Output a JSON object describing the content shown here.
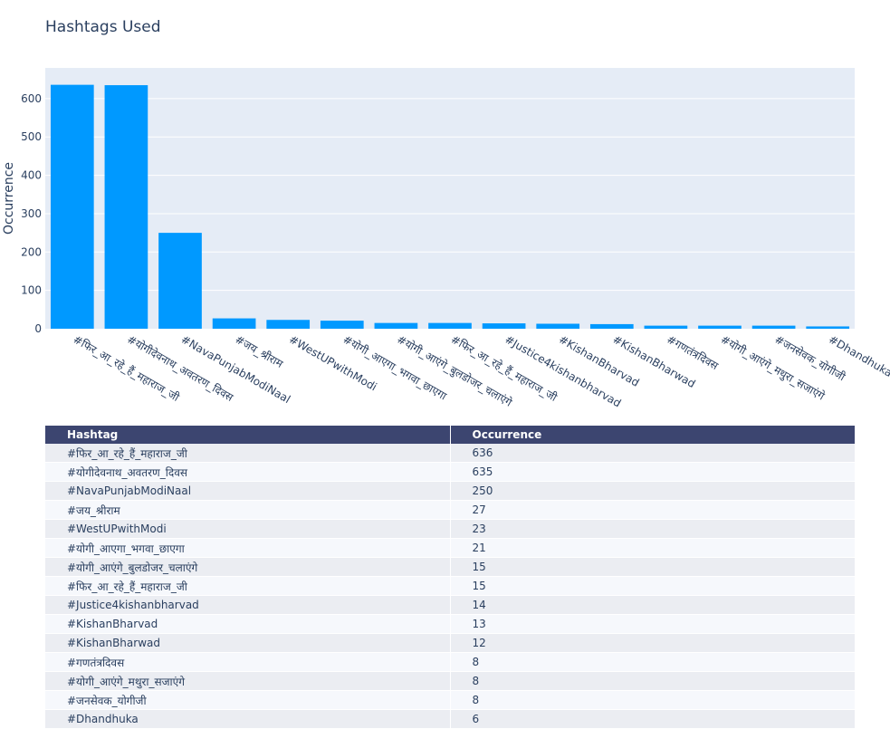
{
  "title": "Hashtags Used",
  "chart_data": {
    "type": "bar",
    "title": "Hashtags Used",
    "xlabel": "",
    "ylabel": "Occurrence",
    "ylim": [
      0,
      680
    ],
    "yticks": [
      0,
      100,
      200,
      300,
      400,
      500,
      600
    ],
    "grid": true,
    "bar_color": "#0099ff",
    "categories": [
      "#फिर_आ_रहे_हैं_महाराज_जी",
      "#योगीदेवनाथ_अवतरण_दिवस",
      "#NavaPunjabModiNaal",
      "#जय_श्रीराम",
      "#WestUPwithModi",
      "#योगी_आएगा_भगवा_छाएगा",
      "#योगी_आएंगे_बुलडोजर_चलाएंगे",
      "#फिर_आ_रहे_हैं_महाराज_जी",
      "#Justice4kishanbharvad",
      "#KishanBharvad",
      "#KishanBharwad",
      "#गणतंत्रदिवस",
      "#योगी_आएंगे_मथुरा_सजाएंगे",
      "#जनसेवक_योगीजी",
      "#Dhandhuka"
    ],
    "values": [
      636,
      635,
      250,
      27,
      23,
      21,
      15,
      15,
      14,
      13,
      12,
      8,
      8,
      8,
      6
    ]
  },
  "table": {
    "header_color": "#3c4570",
    "columns": [
      "Hashtag",
      "Occurrence"
    ],
    "rows": [
      [
        "#फिर_आ_रहे_हैं_महाराज_जी",
        "636"
      ],
      [
        "#योगीदेवनाथ_अवतरण_दिवस",
        "635"
      ],
      [
        "#NavaPunjabModiNaal",
        "250"
      ],
      [
        "#जय_श्रीराम",
        "27"
      ],
      [
        "#WestUPwithModi",
        "23"
      ],
      [
        "#योगी_आएगा_भगवा_छाएगा",
        "21"
      ],
      [
        "#योगी_आएंगे_बुलडोजर_चलाएंगे",
        "15"
      ],
      [
        "#फिर_आ_रहे_हैं_महाराज_जी",
        "15"
      ],
      [
        "#Justice4kishanbharvad",
        "14"
      ],
      [
        "#KishanBharvad",
        "13"
      ],
      [
        "#KishanBharwad",
        "12"
      ],
      [
        "#गणतंत्रदिवस",
        "8"
      ],
      [
        "#योगी_आएंगे_मथुरा_सजाएंगे",
        "8"
      ],
      [
        "#जनसेवक_योगीजी",
        "8"
      ],
      [
        "#Dhandhuka",
        "6"
      ]
    ]
  }
}
